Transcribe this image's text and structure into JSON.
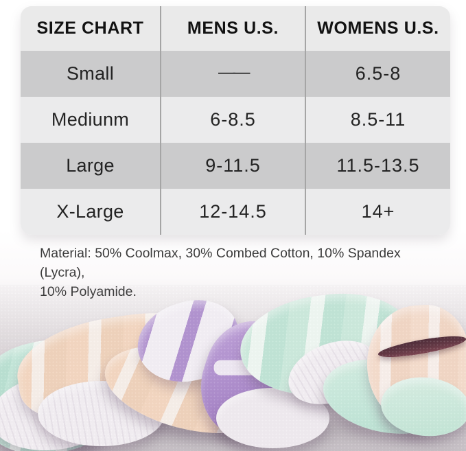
{
  "chart_data": {
    "type": "table",
    "title": "SIZE CHART",
    "columns": [
      "SIZE CHART",
      "MENS U.S.",
      "WOMENS U.S."
    ],
    "rows": [
      [
        "Small",
        "——",
        "6.5-8"
      ],
      [
        "Mediunm",
        "6-8.5",
        "8.5-11"
      ],
      [
        "Large",
        "9-11.5",
        "11.5-13.5"
      ],
      [
        "X-Large",
        "12-14.5",
        "14+"
      ]
    ]
  },
  "material_note": {
    "line1": "Material: 50% Coolmax, 30% Combed Cotton, 10% Spandex (Lycra),",
    "line2": "10% Polyamide."
  },
  "colors": {
    "page_bg": "#ffffff",
    "header_bg": "#eaeaea",
    "row_dark_bg": "#cbcbcc",
    "row_light_bg": "#ebebec",
    "divider": "#a5a5a5",
    "table_text": "#232323",
    "note_text": "#3b3b3b",
    "backdrop_top": "#ddd7da",
    "backdrop_bottom": "#c9c3c8",
    "sock_mint": "#c5e8da",
    "sock_peach": "#f5d8c2",
    "sock_purple": "#b394d1",
    "sock_white": "#f4f0f4",
    "sock_maroon": "#633844"
  }
}
